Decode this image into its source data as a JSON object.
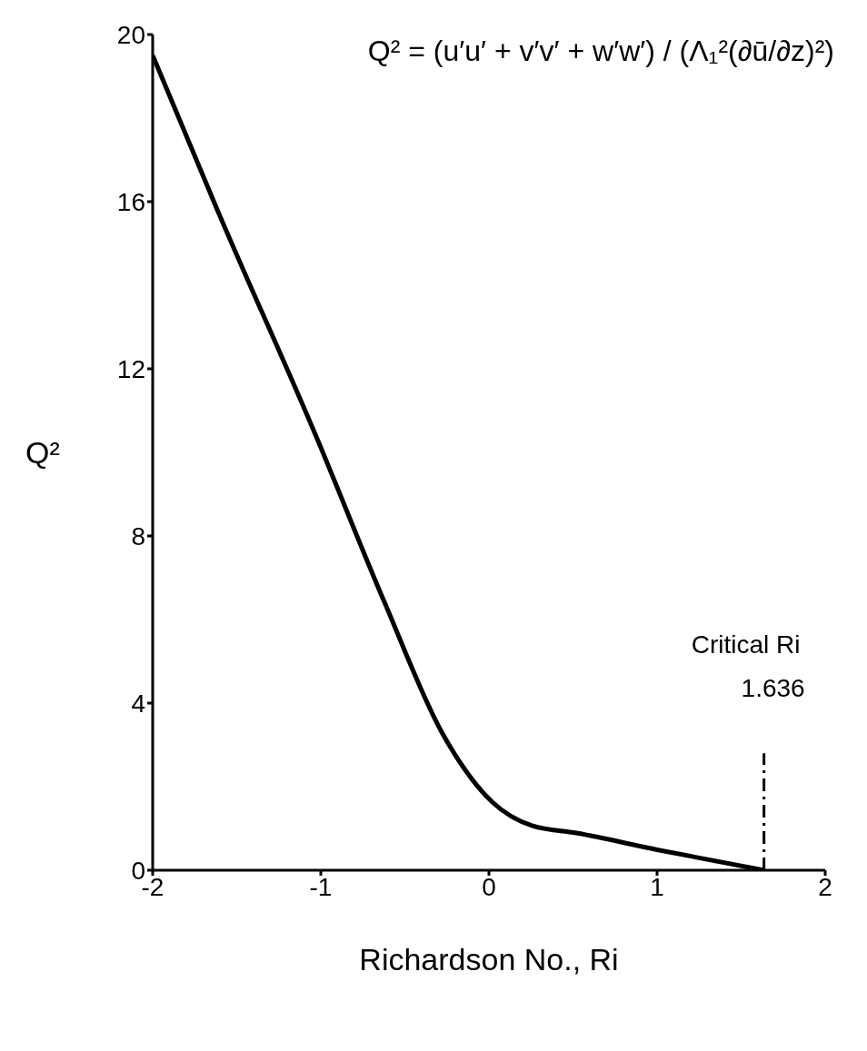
{
  "chart_data": {
    "type": "line",
    "xlabel": "Richardson No., Ri",
    "ylabel": "Q²",
    "series": [
      {
        "color": "#000000",
        "x": [
          -2,
          -1.61,
          -1.04,
          -0.62,
          -0.28,
          0.02,
          0.26,
          0.52,
          1.0,
          1.636
        ],
        "values": [
          19.5,
          15.75,
          10.5,
          6.4,
          3.3,
          1.63,
          1.06,
          0.89,
          0.49,
          0
        ]
      }
    ],
    "xlim": [
      -2,
      2
    ],
    "xticks": [
      -2,
      -1,
      0,
      1,
      2
    ],
    "ylim": [
      0,
      20
    ],
    "yticks": [
      0,
      4,
      8,
      12,
      16,
      20
    ],
    "marker": "none",
    "line_style": "solid",
    "ref_lines": [
      {
        "axis": "x",
        "value": 1.636,
        "label": "Critical Ri\n1.636",
        "line_style": "dashdot",
        "color": "#000000"
      }
    ],
    "annotations": [
      "Q² = (u′u′ + v′v′ + w′w′) / (Λ₁²(∂ū/∂z)²)"
    ]
  }
}
